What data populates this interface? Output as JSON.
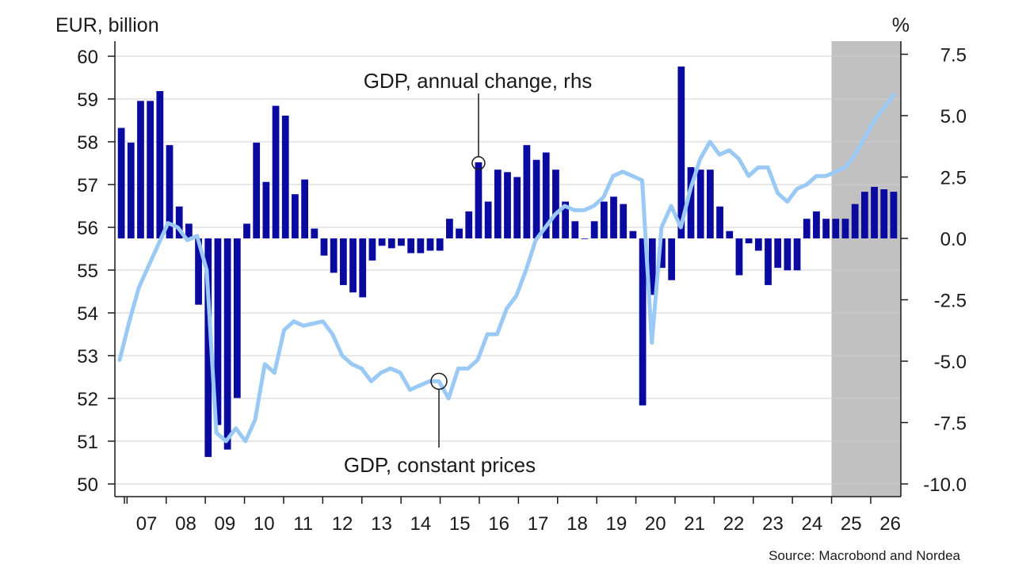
{
  "chart_data": {
    "type": "bar+line",
    "left_axis": {
      "unit": "EUR, billion",
      "ylim": [
        50,
        60
      ],
      "ticks": [
        "50",
        "51",
        "52",
        "53",
        "54",
        "55",
        "56",
        "57",
        "58",
        "59",
        "60"
      ]
    },
    "right_axis": {
      "unit": "%",
      "ylim": [
        -10,
        7.5
      ],
      "ticks": [
        "-10.0",
        "-7.5",
        "-5.0",
        "-2.5",
        "0.0",
        "2.5",
        "5.0",
        "7.5"
      ]
    },
    "x_tick_labels": [
      "07",
      "08",
      "09",
      "10",
      "11",
      "12",
      "13",
      "14",
      "15",
      "16",
      "17",
      "18",
      "19",
      "20",
      "21",
      "22",
      "23",
      "24",
      "25",
      "26"
    ],
    "x_start_year": 2006.75,
    "x_end_year": 2026.75,
    "forecast_start_year": 2025,
    "grid": true,
    "colors": {
      "bar": "#0a0aa0",
      "line": "#99c9f4",
      "forecast_shade": "#c0c0c0",
      "grid": "#d0d0d0",
      "axis": "#1a1a1a"
    },
    "series": [
      {
        "name": "GDP, annual change, rhs",
        "type": "bar",
        "axis": "right",
        "values": [
          4.5,
          3.9,
          5.6,
          5.6,
          6.0,
          3.8,
          1.3,
          0.6,
          -2.7,
          -8.9,
          -7.6,
          -8.6,
          -6.5,
          0.6,
          3.9,
          2.3,
          5.4,
          5.0,
          1.8,
          2.4,
          0.4,
          -0.7,
          -1.4,
          -1.9,
          -2.2,
          -2.4,
          -0.9,
          -0.3,
          -0.4,
          -0.3,
          -0.6,
          -0.6,
          -0.5,
          -0.5,
          0.8,
          0.4,
          1.1,
          3.1,
          1.5,
          2.8,
          2.7,
          2.5,
          3.8,
          3.2,
          3.5,
          2.8,
          1.5,
          0.7,
          0.0,
          0.7,
          1.5,
          1.7,
          1.4,
          0.3,
          -6.8,
          -2.3,
          -1.2,
          -1.7,
          7.0,
          2.9,
          2.8,
          2.8,
          1.3,
          0.3,
          -1.5,
          -0.2,
          -0.5,
          -1.9,
          -1.2,
          -1.3,
          -1.3,
          0.8,
          1.1,
          0.8,
          0.8,
          0.8,
          1.4,
          1.9,
          2.1,
          2.0,
          1.9
        ]
      },
      {
        "name": "GDP, constant prices",
        "type": "line",
        "axis": "left",
        "values": [
          52.9,
          53.8,
          54.6,
          55.1,
          55.6,
          56.1,
          56.0,
          55.7,
          55.8,
          55.0,
          51.2,
          51.0,
          51.3,
          51.0,
          51.5,
          52.8,
          52.6,
          53.6,
          53.8,
          53.7,
          53.75,
          53.8,
          53.5,
          53.0,
          52.8,
          52.7,
          52.4,
          52.6,
          52.7,
          52.6,
          52.2,
          52.3,
          52.4,
          52.4,
          52.0,
          52.7,
          52.7,
          52.9,
          53.5,
          53.5,
          54.1,
          54.4,
          55.0,
          55.7,
          56.0,
          56.3,
          56.5,
          56.4,
          56.4,
          56.5,
          56.7,
          57.2,
          57.3,
          57.2,
          57.1,
          53.3,
          56.0,
          56.5,
          56.0,
          56.9,
          57.6,
          58.0,
          57.7,
          57.8,
          57.6,
          57.2,
          57.4,
          57.4,
          56.8,
          56.6,
          56.9,
          57.0,
          57.2,
          57.2,
          57.3,
          57.4,
          57.7,
          58.1,
          58.5,
          58.8,
          59.1
        ]
      }
    ],
    "annotations": [
      {
        "text": "GDP, annual change, rhs",
        "series": "GDP, annual change, rhs",
        "point_index": 37
      },
      {
        "text": "GDP, constant prices",
        "series": "GDP, constant prices",
        "point_index": 33
      }
    ],
    "source": "Source: Macrobond and Nordea"
  }
}
